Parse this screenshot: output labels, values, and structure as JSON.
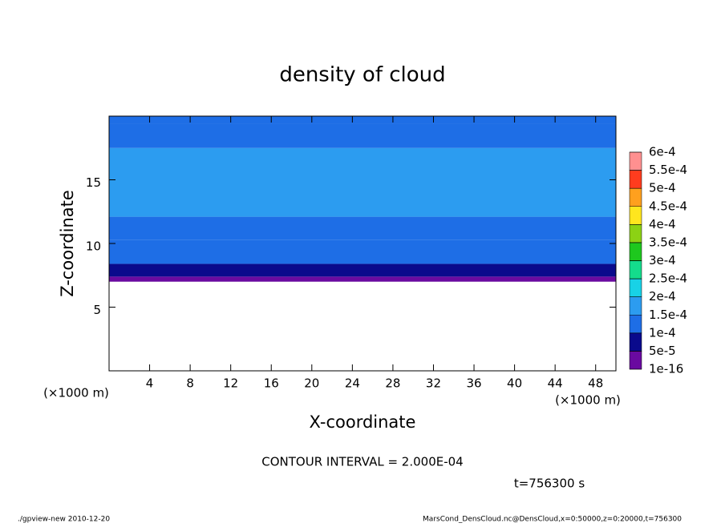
{
  "chart_data": {
    "type": "contour",
    "title": "density of cloud",
    "x_label": "X-coordinate",
    "y_label": "Z-coordinate",
    "x_unit": "(×1000 m)",
    "y_unit": "(×1000 m)",
    "annotation": "CONTOUR INTERVAL = 2.000E-04",
    "time_label": "t=756300 s",
    "footer_left": "./gpview-new  2010-12-20",
    "footer_right": "MarsCond_DensCloud.nc@DensCloud,x=0:50000,z=0:20000,t=756300",
    "y": [
      7.0,
      7.4,
      8.4,
      10.3,
      12.1,
      17.5,
      19.4
    ],
    "values": [
      2e-06,
      7e-05,
      0.00012,
      0.00014,
      0.00017,
      0.00014,
      0.00011
    ],
    "xlim": [
      0,
      50
    ],
    "xticks": [
      4,
      8,
      12,
      16,
      20,
      24,
      28,
      32,
      36,
      40,
      44,
      48
    ],
    "ylim": [
      0,
      20
    ],
    "yticks": [
      5,
      10,
      15
    ],
    "levels": [
      {
        "value": 1e-16,
        "label": "1e-16"
      },
      {
        "value": 5e-05,
        "label": "5e-5"
      },
      {
        "value": 0.0001,
        "label": "1e-4"
      },
      {
        "value": 0.00015,
        "label": "1.5e-4"
      },
      {
        "value": 0.0002,
        "label": "2e-4"
      },
      {
        "value": 0.00025,
        "label": "2.5e-4"
      },
      {
        "value": 0.0003,
        "label": "3e-4"
      },
      {
        "value": 0.00035,
        "label": "3.5e-4"
      },
      {
        "value": 0.0004,
        "label": "4e-4"
      },
      {
        "value": 0.00045,
        "label": "4.5e-4"
      },
      {
        "value": 0.0005,
        "label": "5e-4"
      },
      {
        "value": 0.00055,
        "label": "5.5e-4"
      },
      {
        "value": 0.0006,
        "label": "6e-4"
      }
    ],
    "colors": [
      "#6a0aa0",
      "#0a0a8c",
      "#1e6ee6",
      "#2c9cf0",
      "#18d2e6",
      "#14dc8c",
      "#1ec81e",
      "#8cd214",
      "#ffe61e",
      "#ffa01e",
      "#ff3c1e",
      "#ff9090"
    ]
  }
}
